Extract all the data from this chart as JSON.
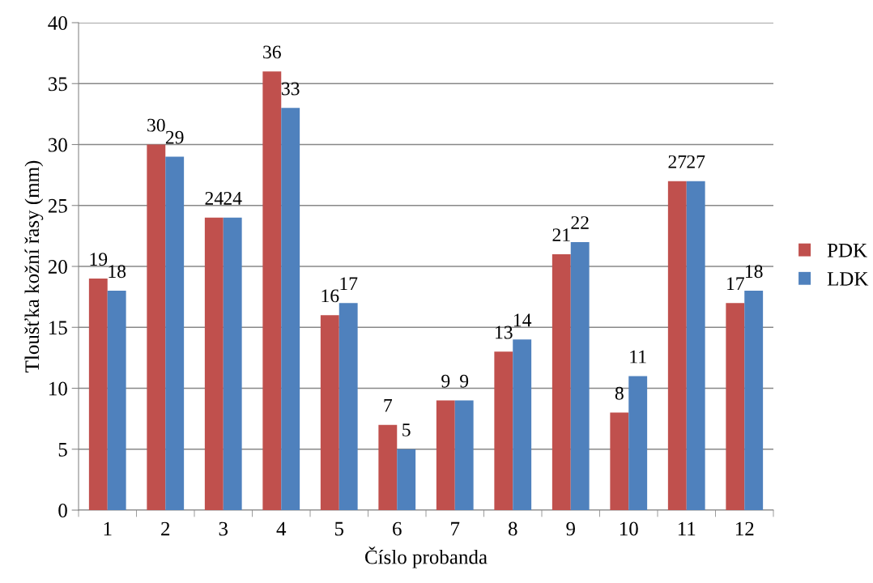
{
  "chart_data": {
    "type": "bar",
    "xlabel": "Číslo probanda",
    "ylabel": "Tloušťka kožní řasy (mm)",
    "categories": [
      "1",
      "2",
      "3",
      "4",
      "5",
      "6",
      "7",
      "8",
      "9",
      "10",
      "11",
      "12"
    ],
    "series": [
      {
        "name": "PDK",
        "color": "#c0504d",
        "values": [
          19,
          30,
          24,
          36,
          16,
          7,
          9,
          13,
          21,
          8,
          27,
          17
        ]
      },
      {
        "name": "LDK",
        "color": "#4f81bd",
        "values": [
          18,
          29,
          24,
          33,
          17,
          5,
          9,
          14,
          22,
          11,
          27,
          18
        ]
      }
    ],
    "ylim": [
      0,
      40
    ],
    "yticks": [
      0,
      5,
      10,
      15,
      20,
      25,
      30,
      35,
      40
    ],
    "grid": "y",
    "legend": "right",
    "data_labels": true
  }
}
